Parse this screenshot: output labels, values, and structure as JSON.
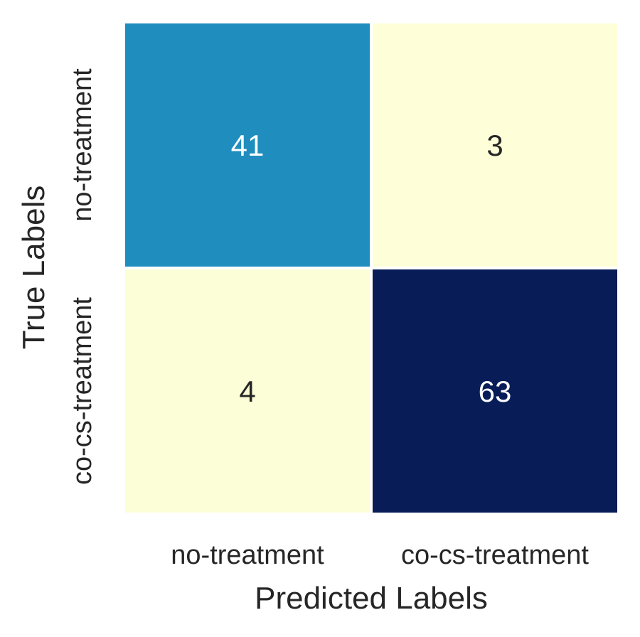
{
  "chart_data": {
    "type": "heatmap",
    "title": "",
    "xlabel": "Predicted Labels",
    "ylabel": "True Labels",
    "x_categories": [
      "no-treatment",
      "co-cs-treatment"
    ],
    "y_categories": [
      "no-treatment",
      "co-cs-treatment"
    ],
    "values": [
      [
        41,
        3
      ],
      [
        4,
        63
      ]
    ],
    "annotations": true,
    "colormap": "YlGnBu",
    "cell_colors": [
      [
        "#1f8ebe",
        "#feffd8"
      ],
      [
        "#fcfed7",
        "#081d58"
      ]
    ],
    "annotation_colors": [
      [
        "#ffffff",
        "#262626"
      ],
      [
        "#262626",
        "#ffffff"
      ]
    ],
    "colorbar": false,
    "cell_separator_color": "#ffffff"
  }
}
